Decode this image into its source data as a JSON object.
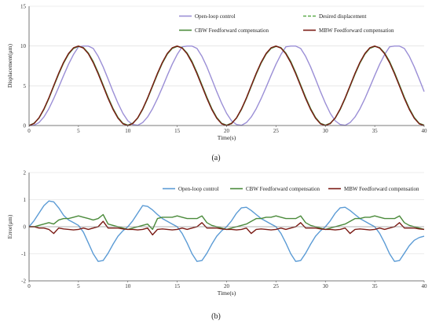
{
  "chart_data": [
    {
      "type": "line",
      "panel_label": "(a)",
      "xlabel": "Time(s)",
      "ylabel": "Displacement(μm)",
      "xlim": [
        0,
        40
      ],
      "ylim": [
        0,
        15
      ],
      "x_ticks": [
        0,
        5,
        10,
        15,
        20,
        25,
        30,
        35,
        40
      ],
      "y_ticks": [
        0,
        5,
        10,
        15
      ],
      "grid": "horizontal",
      "legend_placement": "top",
      "x": [
        0,
        0.5,
        1,
        1.5,
        2,
        2.5,
        3,
        3.5,
        4,
        4.5,
        5,
        5.5,
        6,
        6.5,
        7,
        7.5,
        8,
        8.5,
        9,
        9.5,
        10,
        10.5,
        11,
        11.5,
        12,
        12.5,
        13,
        13.5,
        14,
        14.5,
        15,
        15.5,
        16,
        16.5,
        17,
        17.5,
        18,
        18.5,
        19,
        19.5,
        20,
        20.5,
        21,
        21.5,
        22,
        22.5,
        23,
        23.5,
        24,
        24.5,
        25,
        25.5,
        26,
        26.5,
        27,
        27.5,
        28,
        28.5,
        29,
        29.5,
        30,
        30.5,
        31,
        31.5,
        32,
        32.5,
        33,
        33.5,
        34,
        34.5,
        35,
        35.5,
        36,
        36.5,
        37,
        37.5,
        38,
        38.5,
        39,
        39.5,
        40
      ],
      "series": [
        {
          "name": "Open-loop control",
          "color": "#9b8fd6",
          "dash": "none",
          "values": [
            0,
            0.03,
            0.37,
            1.08,
            2.11,
            3.39,
            4.82,
            6.3,
            7.72,
            8.94,
            9.9,
            10.0,
            10.0,
            9.69,
            8.7,
            7.38,
            5.85,
            4.27,
            2.8,
            1.53,
            0.59,
            0.13,
            0.03,
            0.37,
            1.08,
            2.11,
            3.39,
            4.82,
            6.3,
            7.72,
            8.94,
            9.9,
            10.0,
            10.0,
            9.69,
            8.7,
            7.38,
            5.85,
            4.27,
            2.8,
            1.53,
            0.59,
            0.13,
            0.03,
            0.37,
            1.08,
            2.11,
            3.39,
            4.82,
            6.3,
            7.72,
            8.94,
            9.9,
            10.0,
            10.0,
            9.69,
            8.7,
            7.38,
            5.85,
            4.27,
            2.8,
            1.53,
            0.59,
            0.13,
            0.03,
            0.37,
            1.08,
            2.11,
            3.39,
            4.82,
            6.3,
            7.72,
            8.94,
            9.9,
            10.0,
            10.0,
            9.69,
            8.7,
            7.38,
            5.85,
            4.27
          ]
        },
        {
          "name": "Desired displacement",
          "color": "#5cab4a",
          "dash": "4,2",
          "values": [
            0,
            0.24,
            0.95,
            2.06,
            3.45,
            5.0,
            6.55,
            7.94,
            9.05,
            9.76,
            10.0,
            9.76,
            9.05,
            7.94,
            6.55,
            5.0,
            3.45,
            2.06,
            0.95,
            0.24,
            0,
            0.24,
            0.95,
            2.06,
            3.45,
            5.0,
            6.55,
            7.94,
            9.05,
            9.76,
            10.0,
            9.76,
            9.05,
            7.94,
            6.55,
            5.0,
            3.45,
            2.06,
            0.95,
            0.24,
            0,
            0.24,
            0.95,
            2.06,
            3.45,
            5.0,
            6.55,
            7.94,
            9.05,
            9.76,
            10.0,
            9.76,
            9.05,
            7.94,
            6.55,
            5.0,
            3.45,
            2.06,
            0.95,
            0.24,
            0,
            0.24,
            0.95,
            2.06,
            3.45,
            5.0,
            6.55,
            7.94,
            9.05,
            9.76,
            10.0,
            9.76,
            9.05,
            7.94,
            6.55,
            5.0,
            3.45,
            2.06,
            0.95,
            0.24,
            0
          ]
        },
        {
          "name": "CBW Feedforward compensation",
          "color": "#4a8a3a",
          "dash": "none",
          "values": [
            0,
            0.3,
            0.93,
            2.0,
            3.38,
            4.92,
            6.45,
            7.86,
            8.98,
            9.7,
            9.95,
            9.8,
            9.12,
            8.05,
            6.66,
            5.1,
            3.56,
            2.15,
            1.02,
            0.28,
            0.05,
            0.3,
            0.93,
            2.0,
            3.38,
            4.92,
            6.45,
            7.86,
            8.98,
            9.7,
            9.95,
            9.8,
            9.12,
            8.05,
            6.66,
            5.1,
            3.56,
            2.15,
            1.02,
            0.28,
            0.05,
            0.3,
            0.93,
            2.0,
            3.38,
            4.92,
            6.45,
            7.86,
            8.98,
            9.7,
            9.95,
            9.8,
            9.12,
            8.05,
            6.66,
            5.1,
            3.56,
            2.15,
            1.02,
            0.28,
            0.05,
            0.3,
            0.93,
            2.0,
            3.38,
            4.92,
            6.45,
            7.86,
            8.98,
            9.7,
            9.95,
            9.8,
            9.12,
            8.05,
            6.66,
            5.1,
            3.56,
            2.15,
            1.02,
            0.28,
            0.05
          ]
        },
        {
          "name": "MBW Feedforward compensation",
          "color": "#7a1a14",
          "dash": "none",
          "values": [
            0,
            0.25,
            0.97,
            2.08,
            3.47,
            5.02,
            6.57,
            7.96,
            9.07,
            9.78,
            10.0,
            9.74,
            9.02,
            7.9,
            6.5,
            4.95,
            3.4,
            2.02,
            0.92,
            0.22,
            0,
            0.25,
            0.97,
            2.08,
            3.47,
            5.02,
            6.57,
            7.96,
            9.07,
            9.78,
            10.0,
            9.74,
            9.02,
            7.9,
            6.5,
            4.95,
            3.4,
            2.02,
            0.92,
            0.22,
            0,
            0.25,
            0.97,
            2.08,
            3.47,
            5.02,
            6.57,
            7.96,
            9.07,
            9.78,
            10.0,
            9.74,
            9.02,
            7.9,
            6.5,
            4.95,
            3.4,
            2.02,
            0.92,
            0.22,
            0,
            0.25,
            0.97,
            2.08,
            3.47,
            5.02,
            6.57,
            7.96,
            9.07,
            9.78,
            10.0,
            9.74,
            9.02,
            7.9,
            6.5,
            4.95,
            3.4,
            2.02,
            0.92,
            0.22,
            0
          ]
        }
      ]
    },
    {
      "type": "line",
      "panel_label": "(b)",
      "xlabel": "Time(s)",
      "ylabel": "Error(μm)",
      "xlim": [
        0,
        40
      ],
      "ylim": [
        -2,
        2
      ],
      "x_ticks": [
        0,
        5,
        10,
        15,
        20,
        25,
        30,
        35,
        40
      ],
      "y_ticks": [
        -2,
        -1,
        0,
        1,
        2
      ],
      "grid": "horizontal",
      "legend_placement": "top",
      "x": [
        0,
        0.5,
        1,
        1.5,
        2,
        2.5,
        3,
        3.5,
        4,
        4.5,
        5,
        5.5,
        6,
        6.5,
        7,
        7.5,
        8,
        8.5,
        9,
        9.5,
        10,
        10.5,
        11,
        11.5,
        12,
        12.5,
        13,
        13.5,
        14,
        14.5,
        15,
        15.5,
        16,
        16.5,
        17,
        17.5,
        18,
        18.5,
        19,
        19.5,
        20,
        20.5,
        21,
        21.5,
        22,
        22.5,
        23,
        23.5,
        24,
        24.5,
        25,
        25.5,
        26,
        26.5,
        27,
        27.5,
        28,
        28.5,
        29,
        29.5,
        30,
        30.5,
        31,
        31.5,
        32,
        32.5,
        33,
        33.5,
        34,
        34.5,
        35,
        35.5,
        36,
        36.5,
        37,
        37.5,
        38,
        38.5,
        39,
        39.5,
        40
      ],
      "series": [
        {
          "name": "Open-loop control",
          "color": "#5b9bd5",
          "dash": "none",
          "values": [
            0.0,
            0.22,
            0.5,
            0.78,
            0.95,
            0.92,
            0.7,
            0.42,
            0.25,
            0.15,
            0.05,
            -0.2,
            -0.6,
            -1.0,
            -1.28,
            -1.25,
            -0.98,
            -0.65,
            -0.35,
            -0.15,
            0.0,
            0.22,
            0.5,
            0.78,
            0.75,
            0.62,
            0.45,
            0.3,
            0.2,
            0.1,
            0.0,
            -0.25,
            -0.6,
            -1.0,
            -1.28,
            -1.25,
            -0.98,
            -0.65,
            -0.35,
            -0.15,
            0.0,
            0.22,
            0.5,
            0.7,
            0.72,
            0.6,
            0.45,
            0.3,
            0.2,
            0.1,
            0.0,
            -0.25,
            -0.6,
            -1.0,
            -1.28,
            -1.25,
            -0.98,
            -0.65,
            -0.35,
            -0.15,
            0.0,
            0.22,
            0.5,
            0.7,
            0.72,
            0.6,
            0.45,
            0.3,
            0.2,
            0.1,
            0.0,
            -0.25,
            -0.6,
            -1.0,
            -1.28,
            -1.25,
            -0.98,
            -0.7,
            -0.5,
            -0.4,
            -0.35
          ]
        },
        {
          "name": "CBW Feedforward compensation",
          "color": "#4a8a3a",
          "dash": "none",
          "values": [
            0.0,
            0.0,
            0.05,
            0.1,
            0.15,
            0.1,
            0.25,
            0.3,
            0.3,
            0.35,
            0.4,
            0.35,
            0.3,
            0.25,
            0.3,
            0.45,
            0.1,
            0.05,
            0.0,
            -0.05,
            -0.1,
            -0.05,
            0.0,
            0.05,
            0.1,
            -0.1,
            0.3,
            0.35,
            0.35,
            0.35,
            0.4,
            0.35,
            0.3,
            0.3,
            0.3,
            0.4,
            0.15,
            0.05,
            0.0,
            -0.05,
            -0.1,
            -0.05,
            0.0,
            0.05,
            0.1,
            0.2,
            0.3,
            0.3,
            0.35,
            0.35,
            0.4,
            0.35,
            0.3,
            0.3,
            0.3,
            0.4,
            0.15,
            0.05,
            0.0,
            -0.05,
            -0.1,
            -0.05,
            0.0,
            0.05,
            0.1,
            0.2,
            0.3,
            0.3,
            0.35,
            0.35,
            0.4,
            0.35,
            0.3,
            0.3,
            0.3,
            0.4,
            0.15,
            0.05,
            0.0,
            -0.05,
            -0.1
          ]
        },
        {
          "name": "MBW Feedforward compensation",
          "color": "#7a1a14",
          "dash": "none",
          "values": [
            0.0,
            0.0,
            -0.05,
            -0.05,
            -0.1,
            -0.25,
            -0.05,
            -0.08,
            -0.1,
            -0.12,
            -0.1,
            -0.05,
            -0.1,
            -0.05,
            0.0,
            0.2,
            -0.05,
            -0.05,
            -0.05,
            -0.08,
            -0.1,
            -0.1,
            -0.12,
            -0.1,
            -0.05,
            -0.3,
            -0.1,
            -0.08,
            -0.1,
            -0.12,
            -0.1,
            -0.05,
            -0.1,
            -0.05,
            0.0,
            0.15,
            -0.05,
            -0.05,
            -0.05,
            -0.08,
            -0.1,
            -0.1,
            -0.12,
            -0.1,
            -0.05,
            -0.25,
            -0.1,
            -0.08,
            -0.1,
            -0.12,
            -0.1,
            -0.05,
            -0.1,
            -0.05,
            0.0,
            0.15,
            -0.05,
            -0.05,
            -0.05,
            -0.08,
            -0.1,
            -0.1,
            -0.12,
            -0.1,
            -0.05,
            -0.25,
            -0.1,
            -0.08,
            -0.1,
            -0.12,
            -0.1,
            -0.05,
            -0.1,
            -0.05,
            0.0,
            0.15,
            -0.05,
            -0.05,
            -0.05,
            -0.08,
            -0.1
          ]
        }
      ]
    }
  ]
}
